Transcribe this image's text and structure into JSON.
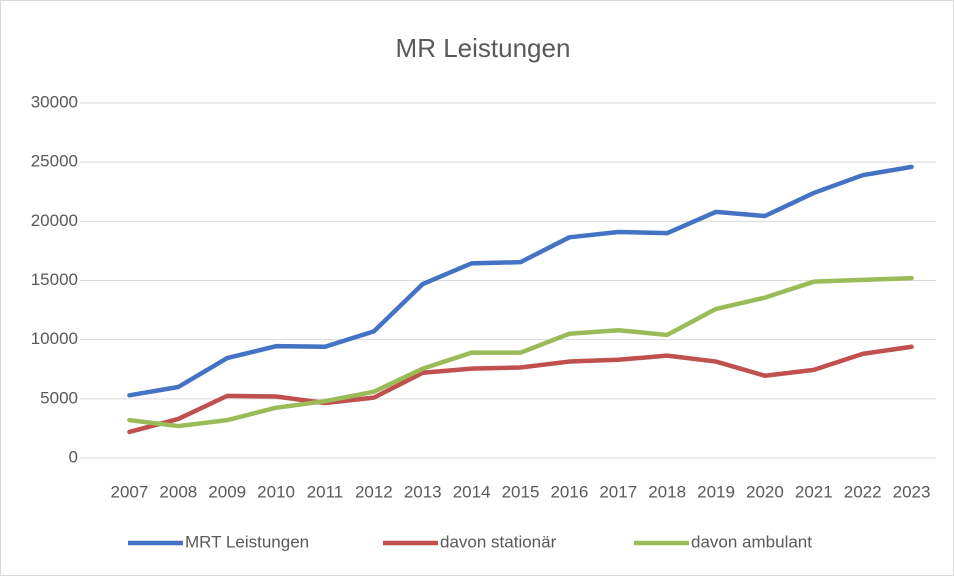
{
  "chart_data": {
    "type": "line",
    "title": "MR Leistungen",
    "categories": [
      "2007",
      "2008",
      "2009",
      "2010",
      "2011",
      "2012",
      "2013",
      "2014",
      "2015",
      "2016",
      "2017",
      "2018",
      "2019",
      "2020",
      "2021",
      "2022",
      "2023"
    ],
    "series": [
      {
        "name": "MRT Leistungen",
        "color": "#4472c4",
        "values": [
          5300,
          6000,
          8450,
          9450,
          9400,
          10700,
          14700,
          16450,
          16550,
          18650,
          19100,
          19000,
          20800,
          20450,
          22400,
          23900,
          24600
        ]
      },
      {
        "name": "davon stationär",
        "color": "#c0504d",
        "values": [
          2200,
          3300,
          5250,
          5200,
          4650,
          5100,
          7200,
          7550,
          7650,
          8150,
          8300,
          8650,
          8150,
          6950,
          7450,
          8800,
          9400
        ]
      },
      {
        "name": "davon ambulant",
        "color": "#9bbb59",
        "values": [
          3200,
          2700,
          3200,
          4250,
          4800,
          5600,
          7550,
          8900,
          8900,
          10500,
          10800,
          10400,
          12600,
          13550,
          14900,
          15050,
          15200
        ]
      }
    ],
    "ylim": [
      0,
      30000
    ],
    "yticks": [
      0,
      5000,
      10000,
      15000,
      20000,
      25000,
      30000
    ],
    "grid": true,
    "legend": "bottom"
  }
}
